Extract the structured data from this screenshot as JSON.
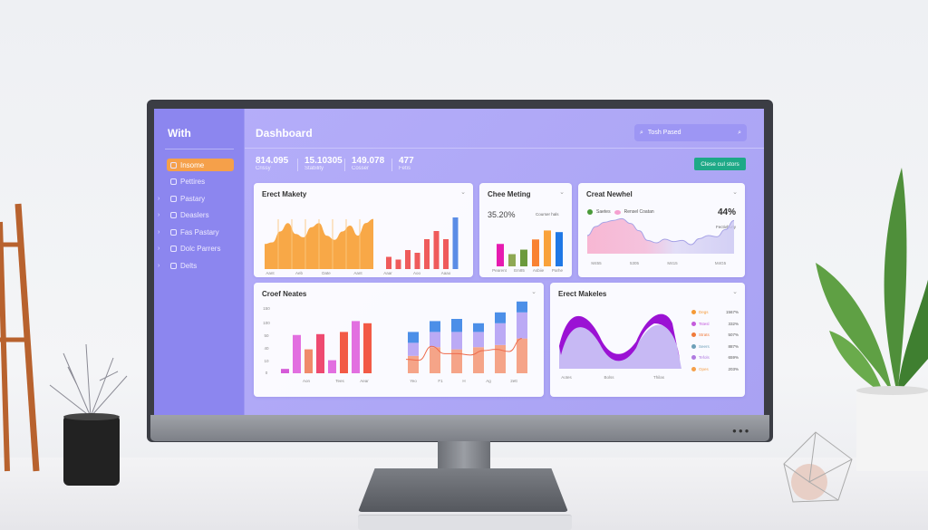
{
  "sidebar": {
    "logo": "With",
    "items": [
      {
        "label": "Insome",
        "active": true
      },
      {
        "label": "Pettires"
      },
      {
        "label": "Pastary"
      },
      {
        "label": "Deaslers"
      },
      {
        "label": "Fas Pastary"
      },
      {
        "label": "Dolc Parrers"
      },
      {
        "label": "Delts"
      }
    ]
  },
  "header": {
    "title": "Dashboard",
    "search_placeholder": "Tosh Pased"
  },
  "stats": [
    {
      "value": "814.095",
      "label": "Crissy"
    },
    {
      "value": "15.10305",
      "label": "Stability"
    },
    {
      "value": "149.078",
      "label": "Cosser"
    },
    {
      "value": "477",
      "label": "Fetis"
    }
  ],
  "action_button": "Clese cul stors",
  "cards": {
    "c1": {
      "title": "Erect Makety",
      "area_values": [
        30,
        32,
        45,
        55,
        42,
        38,
        50,
        55,
        40,
        35,
        45,
        52,
        40,
        55,
        60
      ],
      "bar_values": [
        9,
        7,
        14,
        12,
        22,
        28,
        22,
        38
      ],
      "bar_colors": [
        "#ef5b5b",
        "#ef5b5b",
        "#ef5b5b",
        "#ef5b5b",
        "#ef5b5b",
        "#ef5b5b",
        "#ef5b5b",
        "#5b8de6"
      ],
      "x_labels": [
        "Aant",
        "Aeb",
        "Date",
        "Aant",
        "Aaar",
        "Aoo",
        "Aaao"
      ]
    },
    "c2": {
      "title": "Chee Meting",
      "value": "35.20%",
      "note": "Courser hals",
      "bar_values": [
        55,
        30,
        41,
        66,
        88,
        84
      ],
      "bar_colors": [
        "#e61bb0",
        "#8fa954",
        "#6c9a3c",
        "#f98232",
        "#f9a23a",
        "#1f78e6"
      ],
      "x_labels": [
        "Pearent",
        "Em85",
        "Asbiie",
        "Parhe"
      ]
    },
    "c3": {
      "title": "Creat Newhel",
      "legend": [
        "Saetes",
        "Rensel Coatan"
      ],
      "value": "44%",
      "note": "Fectivhurty",
      "line_values": [
        30,
        45,
        52,
        55,
        58,
        50,
        38,
        22,
        18,
        24,
        20,
        22,
        15,
        25,
        30,
        28,
        40,
        55
      ],
      "x_labels": [
        "M455",
        "5305",
        "M415",
        "M4G5"
      ]
    },
    "c4": {
      "title": "Croef Neates",
      "y_labels": [
        "150",
        "100",
        "50",
        "40",
        "10",
        "0"
      ],
      "bar_values": [
        10,
        88,
        55,
        90,
        30,
        95,
        120,
        115
      ],
      "bar_colors": [
        "#d55ad8",
        "#e26fe0",
        "#f08a6a",
        "#ee4a70",
        "#e26fe0",
        "#f25a45",
        "#e26fe0",
        "#f25a45"
      ],
      "x_labels": [
        "Aon",
        "Tees",
        "Aear"
      ],
      "stack": [
        [
          40,
          30,
          25
        ],
        [
          60,
          35,
          25
        ],
        [
          55,
          40,
          30
        ],
        [
          60,
          35,
          20
        ],
        [
          65,
          50,
          25
        ],
        [
          80,
          60,
          25
        ]
      ],
      "line_values": [
        32,
        30,
        62,
        45,
        45,
        42,
        52,
        55,
        50,
        80
      ],
      "x_labels2": [
        "Yeo",
        "F1",
        "H",
        "Ag",
        "2ett"
      ]
    },
    "c5": {
      "title": "Erect Makeles",
      "x_labels": [
        "Aotes",
        "Bolss",
        "Thilas"
      ],
      "legend": [
        {
          "label": "Degs",
          "value": "1567%",
          "color": "#f59a36"
        },
        {
          "label": "Tstesl",
          "value": "332%",
          "color": "#c45bdc"
        },
        {
          "label": "Strats",
          "value": "507%",
          "color": "#f07a3a"
        },
        {
          "label": "Seers",
          "value": "887%",
          "color": "#6ea0b8"
        },
        {
          "label": "Tefols",
          "value": "659%",
          "color": "#b07ae0"
        },
        {
          "label": "Opes",
          "value": "203%",
          "color": "#f5a04a"
        }
      ]
    }
  }
}
